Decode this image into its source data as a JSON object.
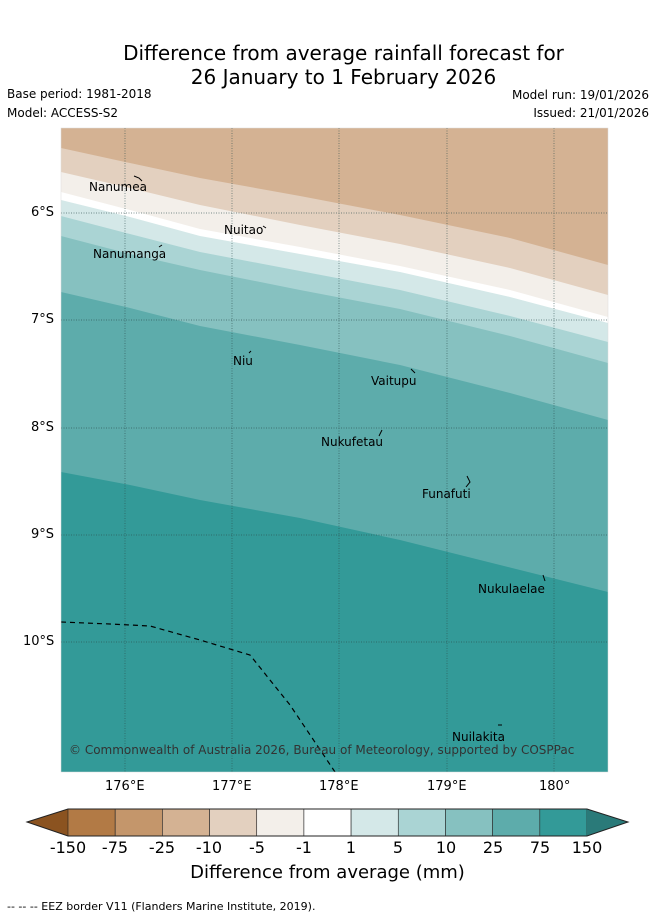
{
  "title": {
    "line1": "Difference from average rainfall forecast for",
    "line2": "26 January to 1 February 2026"
  },
  "meta": {
    "base_period": "Base period: 1981-2018",
    "model": "Model: ACCESS-S2",
    "model_run": "Model run: 19/01/2026",
    "issued": "Issued: 21/01/2026"
  },
  "axes": {
    "lon_labels": [
      "176°E",
      "177°E",
      "178°E",
      "179°E",
      "180°"
    ],
    "lat_labels": [
      "6°S",
      "7°S",
      "8°S",
      "9°S",
      "10°S"
    ]
  },
  "places": [
    {
      "name": "Nanumea"
    },
    {
      "name": "Nuitao"
    },
    {
      "name": "Nanumanga"
    },
    {
      "name": "Niu"
    },
    {
      "name": "Vaitupu"
    },
    {
      "name": "Nukufetau"
    },
    {
      "name": "Funafuti"
    },
    {
      "name": "Nukulaelae"
    },
    {
      "name": "Nuilakita"
    }
  ],
  "copyright": "© Commonwealth of Australia 2026, Bureau of Meteorology, supported by COSPPac",
  "colorbar": {
    "labels": [
      "-150",
      "-75",
      "-25",
      "-10",
      "-5",
      "-1",
      "1",
      "5",
      "10",
      "25",
      "75",
      "150"
    ],
    "colors": [
      "#8b5320",
      "#b27a45",
      "#c4966b",
      "#d4b293",
      "#e3d0bf",
      "#f3efea",
      "#ffffff",
      "#d4e8e8",
      "#aad4d4",
      "#86c1c0",
      "#5dacab",
      "#339a98",
      "#2a7a79"
    ],
    "title": "Difference from average (mm)"
  },
  "footnote": "-- -- -- EEZ border V11 (Flanders Marine Institute, 2019)."
}
